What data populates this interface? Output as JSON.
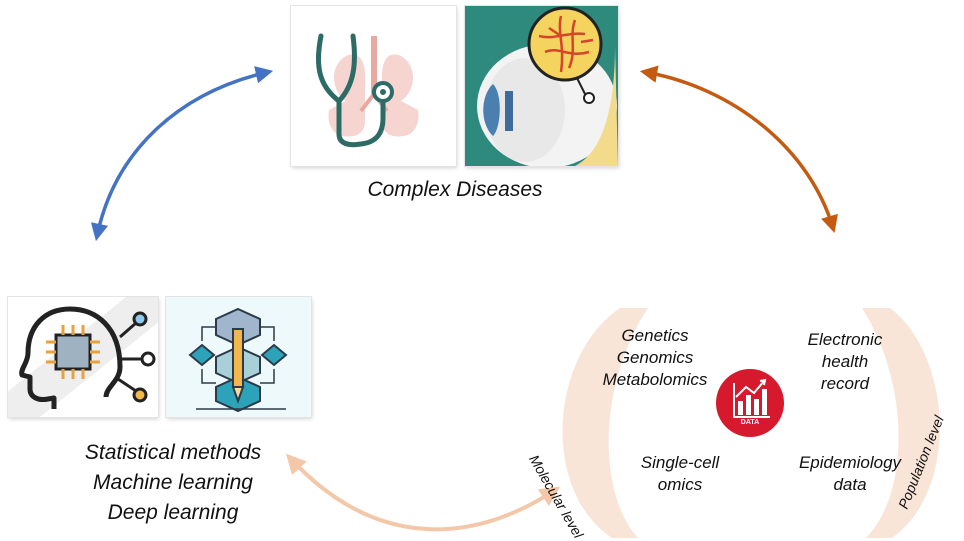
{
  "top": {
    "caption": "Complex Diseases",
    "icons": [
      "stethoscope-lungs-icon",
      "eye-retina-icon"
    ]
  },
  "left": {
    "lines": [
      "Statistical methods",
      "Machine learning",
      "Deep learning"
    ],
    "icons": [
      "ai-head-chip-icon",
      "pencil-flowchart-icon"
    ]
  },
  "right": {
    "molecular_band": "Molecular level",
    "population_band": "Population level",
    "molecular_items": [
      "Genetics",
      "Genomics",
      "Metabolomics"
    ],
    "single_cell": [
      "Single-cell",
      "omics"
    ],
    "ehr": [
      "Electronic",
      "health",
      "record"
    ],
    "epi": [
      "Epidemiology",
      "data"
    ],
    "data_badge": "DATA"
  },
  "colors": {
    "arrow_left": "#4472c4",
    "arrow_right": "#c55a11",
    "arrow_bottom": "#f4c7a8",
    "band": "#f8e5d8",
    "data_red": "#d7192e",
    "teal": "#2f8a7e"
  }
}
